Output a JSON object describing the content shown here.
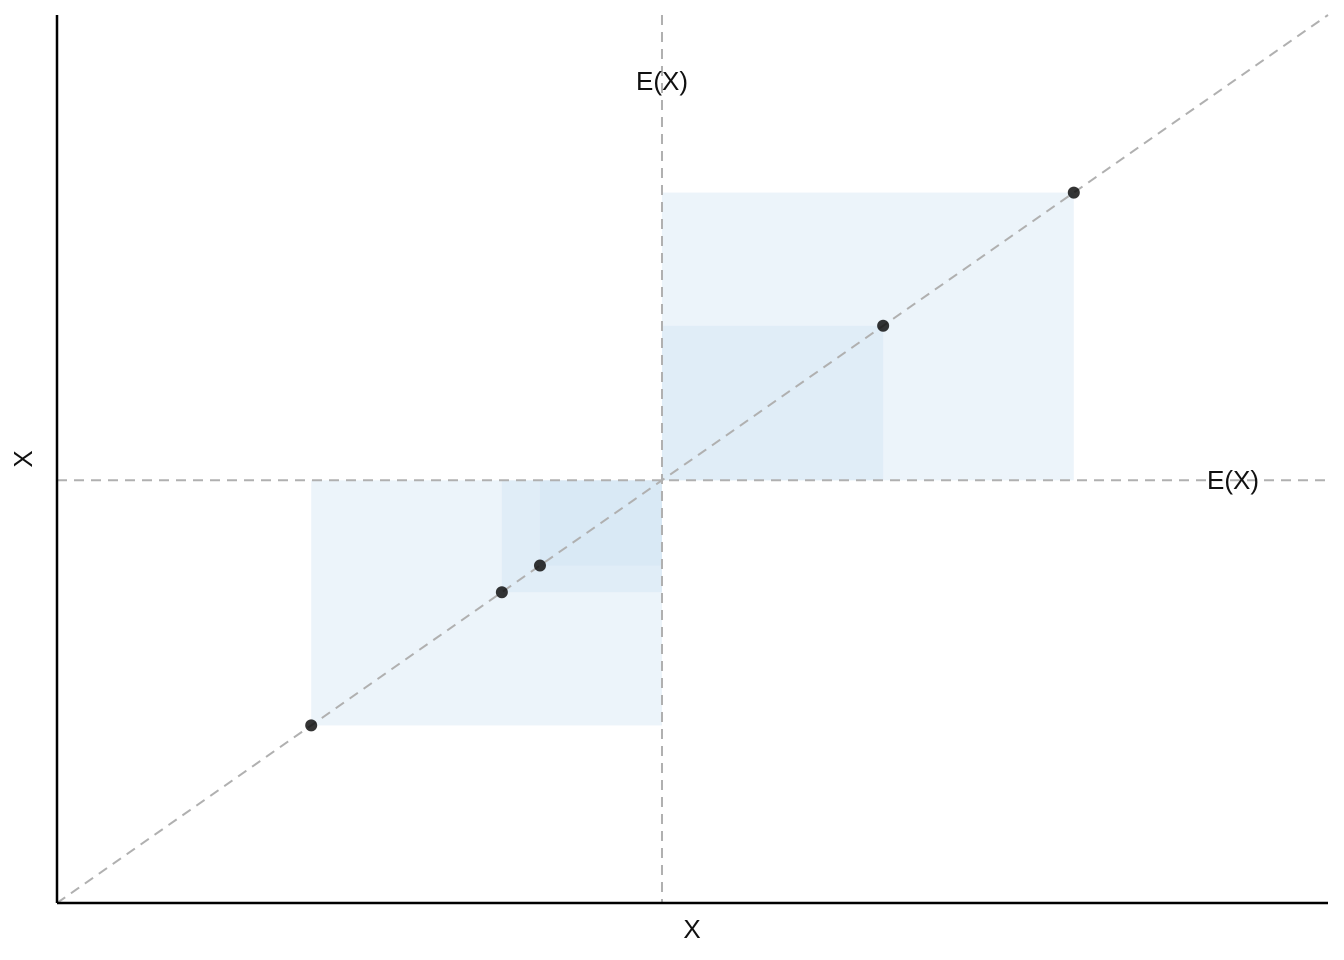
{
  "chart_data": {
    "type": "scatter",
    "x_label": "X",
    "y_label": "X",
    "x": [
      2,
      3.5,
      3.8,
      6.5,
      8
    ],
    "y": [
      2,
      3.5,
      3.8,
      6.5,
      8
    ],
    "mean": 4.76,
    "x_mean_label": "E(X)",
    "y_mean_label": "E(X)",
    "xlim": [
      0,
      10
    ],
    "ylim": [
      0,
      10
    ],
    "color": "#111111",
    "square_color": "#cfe4f2"
  }
}
